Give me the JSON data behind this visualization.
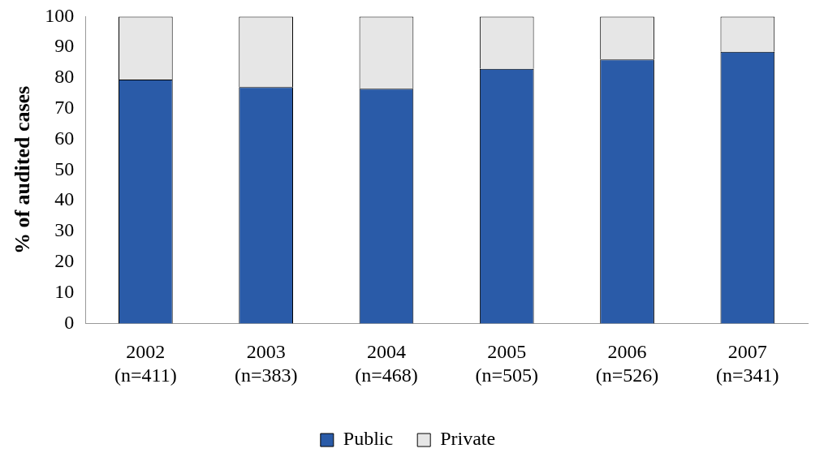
{
  "chart_data": {
    "type": "bar",
    "stacked": true,
    "ylabel": "% of audited cases",
    "categories": [
      "2002\n(n=411)",
      "2003\n(n=383)",
      "2004\n(n=468)",
      "2005\n(n=505)",
      "2006\n(n=526)",
      "2007\n(n=341)"
    ],
    "series": [
      {
        "name": "Public",
        "color": "#2a5ba8",
        "values": [
          79.5,
          77,
          76.5,
          83,
          86,
          88.5
        ]
      },
      {
        "name": "Private",
        "color": "#e6e6e6",
        "values": [
          20.5,
          23,
          23.5,
          17,
          14,
          11.5
        ]
      }
    ],
    "ylim": [
      0,
      100
    ],
    "yticks": [
      0,
      10,
      20,
      30,
      40,
      50,
      60,
      70,
      80,
      90,
      100
    ],
    "grid": false,
    "legend": "bottom"
  }
}
